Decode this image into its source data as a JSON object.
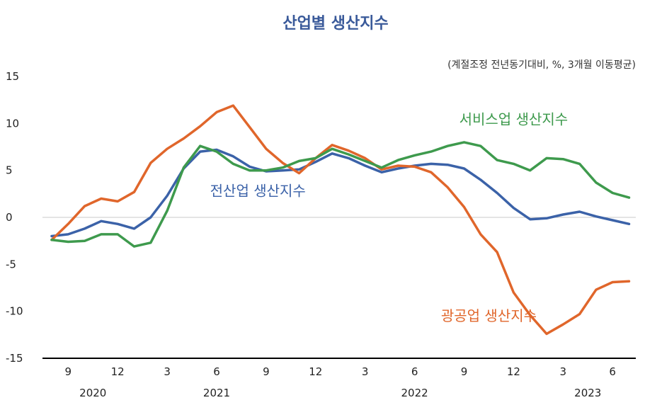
{
  "chart_data": {
    "type": "line",
    "title": "산업별 생산지수",
    "subtitle": "(계절조정 전년동기대비, %, 3개월 이동평균)",
    "ylim": [
      -15,
      15
    ],
    "yticks": [
      15,
      10,
      5,
      0,
      -5,
      -10,
      -15
    ],
    "x_tick_labels": [
      {
        "index": 1,
        "label": "9"
      },
      {
        "index": 4,
        "label": "12"
      },
      {
        "index": 7,
        "label": "3"
      },
      {
        "index": 10,
        "label": "6"
      },
      {
        "index": 13,
        "label": "9"
      },
      {
        "index": 16,
        "label": "12"
      },
      {
        "index": 19,
        "label": "3"
      },
      {
        "index": 22,
        "label": "6"
      },
      {
        "index": 25,
        "label": "9"
      },
      {
        "index": 28,
        "label": "12"
      },
      {
        "index": 31,
        "label": "3"
      },
      {
        "index": 34,
        "label": "6"
      }
    ],
    "year_labels": [
      {
        "index": 2.5,
        "label": "2020"
      },
      {
        "index": 10,
        "label": "2021"
      },
      {
        "index": 22,
        "label": "2022"
      },
      {
        "index": 32.5,
        "label": "2023"
      }
    ],
    "x": [
      "2020-08",
      "2020-09",
      "2020-10",
      "2020-11",
      "2020-12",
      "2021-01",
      "2021-02",
      "2021-03",
      "2021-04",
      "2021-05",
      "2021-06",
      "2021-07",
      "2021-08",
      "2021-09",
      "2021-10",
      "2021-11",
      "2021-12",
      "2022-01",
      "2022-02",
      "2022-03",
      "2022-04",
      "2022-05",
      "2022-06",
      "2022-07",
      "2022-08",
      "2022-09",
      "2022-10",
      "2022-11",
      "2022-12",
      "2023-01",
      "2023-02",
      "2023-03",
      "2023-04",
      "2023-05",
      "2023-06",
      "2023-07"
    ],
    "series": [
      {
        "name": "전산업 생산지수",
        "color": "#3b62a8",
        "values": [
          -2.0,
          -1.8,
          -1.2,
          -0.4,
          -0.7,
          -1.2,
          0.0,
          2.3,
          5.2,
          7.0,
          7.2,
          6.5,
          5.4,
          4.9,
          5.0,
          5.1,
          5.9,
          6.8,
          6.3,
          5.5,
          4.8,
          5.2,
          5.5,
          5.7,
          5.6,
          5.2,
          4.0,
          2.6,
          1.0,
          -0.2,
          -0.1,
          0.3,
          0.6,
          0.1,
          -0.3,
          -0.7
        ],
        "label_pos": {
          "index": 12.5,
          "value": 2.3
        }
      },
      {
        "name": "광공업 생산지수",
        "color": "#e0662b",
        "values": [
          -2.4,
          -0.7,
          1.2,
          2.0,
          1.7,
          2.7,
          5.8,
          7.3,
          8.4,
          9.7,
          11.2,
          11.9,
          9.6,
          7.3,
          5.8,
          4.7,
          6.3,
          7.7,
          7.1,
          6.3,
          5.1,
          5.5,
          5.4,
          4.8,
          3.2,
          1.1,
          -1.8,
          -3.7,
          -8.0,
          -10.4,
          -12.4,
          -11.4,
          -10.3,
          -7.7,
          -6.9,
          -6.8
        ],
        "label_pos": {
          "index": 26.5,
          "value": -11.0
        }
      },
      {
        "name": "서비스업 생산지수",
        "color": "#3e9a4d",
        "values": [
          -2.4,
          -2.6,
          -2.5,
          -1.8,
          -1.8,
          -3.1,
          -2.7,
          0.7,
          5.3,
          7.6,
          7.0,
          5.7,
          5.0,
          5.0,
          5.3,
          6.0,
          6.3,
          7.3,
          6.7,
          6.0,
          5.3,
          6.1,
          6.6,
          7.0,
          7.6,
          8.0,
          7.6,
          6.1,
          5.7,
          5.0,
          6.3,
          6.2,
          5.7,
          3.7,
          2.6,
          2.1
        ],
        "label_pos": {
          "index": 28,
          "value": 9.9
        }
      }
    ],
    "grid": false
  }
}
